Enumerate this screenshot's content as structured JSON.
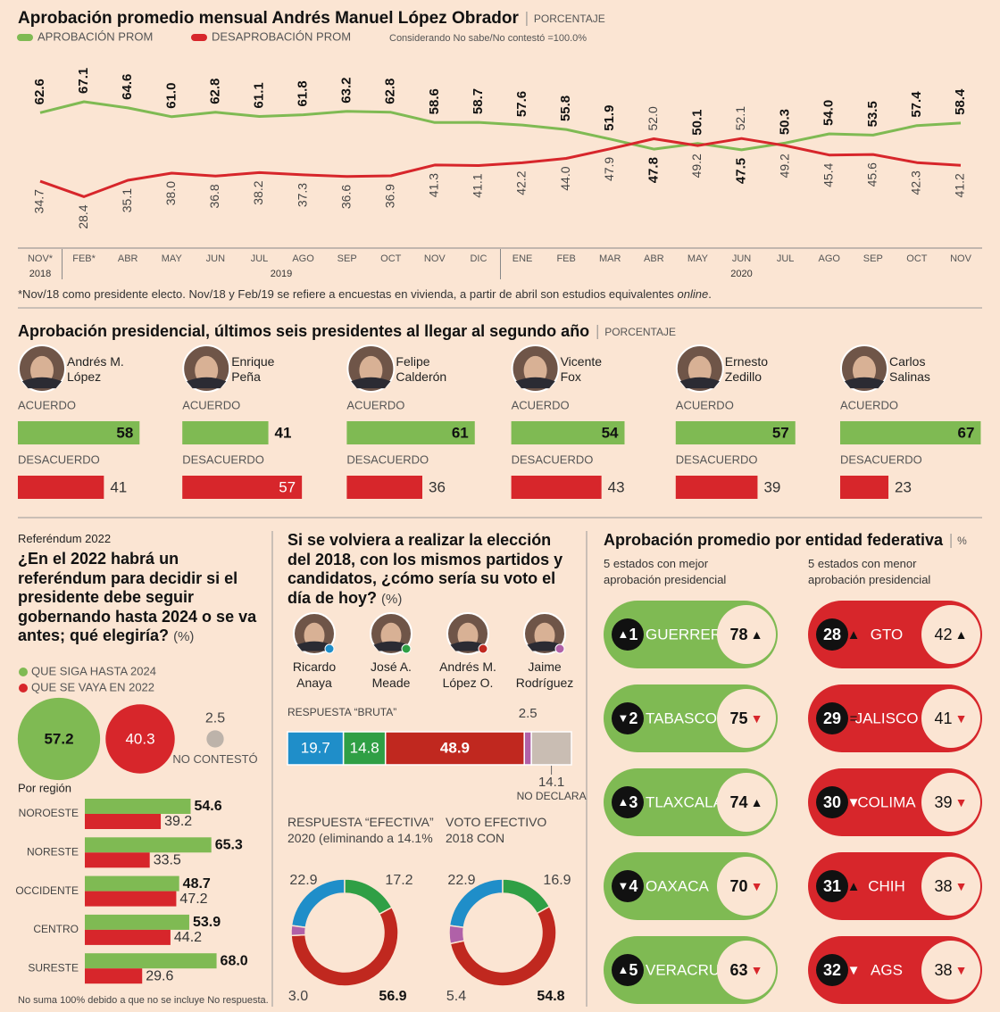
{
  "chart_data": [
    {
      "type": "line",
      "title": "Aprobación promedio mensual Andrés Manuel López Obrador",
      "subtitle": "PORCENTAJE",
      "note": "Considerando No sabe/No contestó =100.0%",
      "categories": [
        "NOV*",
        "FEB*",
        "ABR",
        "MAY",
        "JUN",
        "JUL",
        "AGO",
        "SEP",
        "OCT",
        "NOV",
        "DIC",
        "ENE",
        "FEB",
        "MAR",
        "ABR",
        "MAY",
        "JUN",
        "JUL",
        "AGO",
        "SEP",
        "OCT",
        "NOV"
      ],
      "x_groups": [
        "2018",
        "2019",
        "2020"
      ],
      "series": [
        {
          "name": "APROBACIÓN PROM",
          "color": "#7fba53",
          "values": [
            62.6,
            67.1,
            64.6,
            61.0,
            62.8,
            61.1,
            61.8,
            63.2,
            62.8,
            58.6,
            58.7,
            57.6,
            55.8,
            51.9,
            47.8,
            50.1,
            47.5,
            50.3,
            54.0,
            53.5,
            57.4,
            58.4
          ],
          "value_labels": [
            "62.6",
            "67.1",
            "64.6",
            "61.0",
            "62.8",
            "61.1",
            "61.8",
            "63.2",
            "62.8",
            "58.6",
            "58.7",
            "57.6",
            "55.8",
            "51.9",
            "47.8",
            "50.1",
            "47.5",
            "50.3",
            "54.0",
            "53.5",
            "57.4",
            "58.4"
          ]
        },
        {
          "name": "DESAPROBACIÓN PROM",
          "color": "#d7262b",
          "values": [
            34.7,
            28.4,
            35.1,
            38.0,
            36.8,
            38.2,
            37.3,
            36.6,
            36.9,
            41.3,
            41.1,
            42.2,
            44.0,
            47.9,
            52.0,
            49.2,
            52.1,
            49.2,
            45.4,
            45.6,
            42.3,
            41.2
          ],
          "value_labels": [
            "34.7",
            "28.4",
            "35.1",
            "38.0",
            "36.8",
            "38.2",
            "37.3",
            "36.6",
            "36.9",
            "41.3",
            "41.1",
            "42.2",
            "44.0",
            "47.9",
            "52.0",
            "49.2",
            "52.1",
            "49.2",
            "45.4",
            "45.6",
            "42.3",
            "41.2"
          ]
        }
      ],
      "footnote": [
        "*Nov/18 como presidente electo. Nov/18 y Feb/19 se refiere a encuestas en vivienda, a partir de abril son estudios equivalentes ",
        "online",
        "."
      ]
    },
    {
      "type": "bar",
      "title": "Aprobación presidencial, últimos seis presidentes al llegar al segundo año",
      "subtitle": "PORCENTAJE",
      "categories": [
        "Andrés M. López",
        "Enrique Peña",
        "Felipe Calderón",
        "Vicente Fox",
        "Ernesto Zedillo",
        "Carlos Salinas"
      ],
      "series": [
        {
          "name": "ACUERDO",
          "color": "#7fba53",
          "values": [
            58,
            41,
            61,
            54,
            57,
            67
          ]
        },
        {
          "name": "DESACUERDO",
          "color": "#d7262b",
          "values": [
            41,
            57,
            36,
            43,
            39,
            23
          ]
        }
      ]
    },
    {
      "type": "bubble",
      "kicker": "Referéndum 2022",
      "title": "¿En el 2022 habrá un referéndum para decidir si el presidente debe seguir gobernando hasta 2024 o se va antes; qué elegiría?",
      "unit": "(%)",
      "categories": [
        null,
        null,
        "NO CONTESTÓ"
      ],
      "values": [
        57.2,
        40.3,
        2.5
      ],
      "colors": [
        "#7fba53",
        "#d7262b",
        "#bdb3aa"
      ]
    },
    {
      "type": "hbar",
      "title": "Por región",
      "categories": [
        "NOROESTE",
        "NORESTE",
        "OCCIDENTE",
        "CENTRO",
        "SURESTE"
      ],
      "series": [
        {
          "name": "QUE SIGA HASTA 2024",
          "color": "#7fba53",
          "values": [
            54.6,
            65.3,
            48.7,
            53.9,
            68.0
          ],
          "value_labels": [
            "54.6",
            "65.3",
            "48.7",
            "53.9",
            "68.0"
          ]
        },
        {
          "name": "QUE SE VAYA EN 2022",
          "color": "#d7262b",
          "values": [
            39.2,
            33.5,
            47.2,
            44.2,
            29.6
          ],
          "value_labels": [
            "39.2",
            "33.5",
            "47.2",
            "44.2",
            "29.6"
          ]
        }
      ],
      "note": "No suma 100% debido a que no se incluye No respuesta."
    },
    {
      "type": "stacked_bar",
      "title": "Si se volviera a realizar la elección del 2018, con los mismos partidos y candidatos, ¿cómo sería su voto el día de hoy?",
      "unit": "(%)",
      "label": "RESPUESTA “BRUTA”",
      "series": [
        {
          "name": "Ricardo Anaya",
          "color": "#1f8ec9",
          "values": [
            19.7
          ]
        },
        {
          "name": "José A. Meade",
          "color": "#2f9f45",
          "values": [
            14.8
          ]
        },
        {
          "name": "Andrés M. López O.",
          "color": "#c0281f",
          "values": [
            48.9
          ]
        },
        {
          "name": "Jaime Rodríguez",
          "color": "#b061a8",
          "values": [
            2.5
          ]
        },
        {
          "name": "NO DECLARA",
          "color": "#c9bdb3",
          "values": [
            14.1
          ]
        }
      ]
    },
    {
      "type": "donut",
      "title": "RESPUESTA “EFECTIVA” 2020 (eliminando a 14.1%",
      "values": [
        22.9,
        17.2,
        56.9,
        3.0
      ],
      "value_labels": [
        "22.9",
        "17.2",
        "56.9",
        "3.0"
      ],
      "colors": [
        "#1f8ec9",
        "#2f9f45",
        "#c0281f",
        "#b061a8"
      ]
    },
    {
      "type": "donut",
      "title": "VOTO EFECTIVO 2018 CON",
      "values": [
        22.9,
        16.9,
        54.8,
        5.4
      ],
      "value_labels": [
        "22.9",
        "16.9",
        "54.8",
        "5.4"
      ],
      "colors": [
        "#1f8ec9",
        "#2f9f45",
        "#c0281f",
        "#b061a8"
      ]
    }
  ],
  "states": {
    "title": "Aprobación promedio por entidad federativa",
    "unit": "%",
    "groups": [
      {
        "label": "5 estados con mejor aprobación presidencial",
        "color": "#7fba53",
        "rows": [
          {
            "rank": 1,
            "rank_trend": "▲",
            "name": "GUERRERO",
            "value": 78,
            "value_trend": "▲"
          },
          {
            "rank": 2,
            "rank_trend": "▼",
            "name": "TABASCO",
            "value": 75,
            "value_trend": "▼"
          },
          {
            "rank": 3,
            "rank_trend": "▲",
            "name": "TLAXCALA",
            "value": 74,
            "value_trend": "▲"
          },
          {
            "rank": 4,
            "rank_trend": "▼",
            "name": "OAXACA",
            "value": 70,
            "value_trend": "▼"
          },
          {
            "rank": 5,
            "rank_trend": "▲",
            "name": "VERACRUZ",
            "value": 63,
            "value_trend": "▼"
          }
        ]
      },
      {
        "label": "5 estados con menor aprobación presidencial",
        "color": "#d7262b",
        "rows": [
          {
            "rank": 28,
            "rank_trend": "▲",
            "name": "GTO",
            "value": 42,
            "value_trend": "▲"
          },
          {
            "rank": 29,
            "rank_trend": "=",
            "name": "JALISCO",
            "value": 41,
            "value_trend": "▼"
          },
          {
            "rank": 30,
            "rank_trend": "▼",
            "name": "COLIMA",
            "value": 39,
            "value_trend": "▼"
          },
          {
            "rank": 31,
            "rank_trend": "▲",
            "name": "CHIH",
            "value": 38,
            "value_trend": "▼"
          },
          {
            "rank": 32,
            "rank_trend": "▼",
            "name": "AGS",
            "value": 38,
            "value_trend": "▼"
          }
        ]
      }
    ]
  }
}
